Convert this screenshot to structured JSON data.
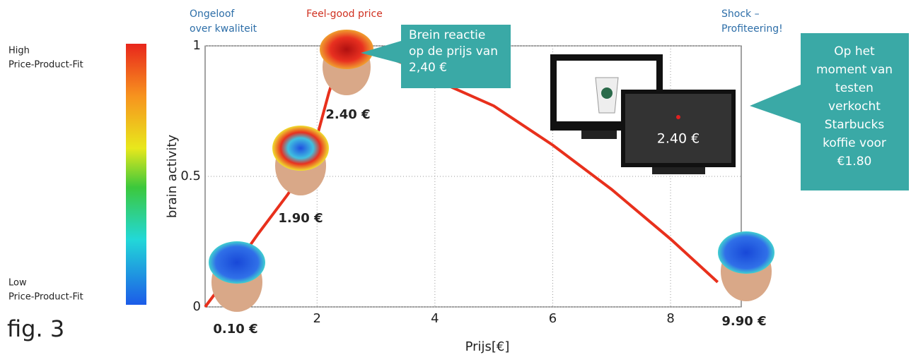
{
  "chart_data": {
    "type": "line",
    "xlabel": "Prijs[€]",
    "ylabel": "brain activity",
    "x": [
      0.1,
      0.5,
      1,
      1.5,
      1.9,
      2.2,
      2.4,
      2.8,
      3.5,
      4,
      5,
      6,
      7,
      8,
      8.8
    ],
    "values": [
      0,
      0.12,
      0.28,
      0.43,
      0.57,
      0.82,
      0.96,
      0.99,
      0.93,
      0.87,
      0.77,
      0.62,
      0.45,
      0.26,
      0.095
    ],
    "color": "#e8301c",
    "xlim": [
      0.1,
      9.2
    ],
    "ylim": [
      0,
      1
    ],
    "xticks": [
      2,
      4,
      6,
      8
    ],
    "yticks": [
      0,
      0.5,
      1
    ],
    "grid": true,
    "price_labels": [
      "0.10 €",
      "1.90 €",
      "2.40 €",
      "9.90 €"
    ],
    "top_labels": [
      [
        "Ongeloof",
        "over kwaliteit"
      ],
      [
        "Feel-good price"
      ],
      [
        "Shock –",
        "Profiteering!"
      ]
    ],
    "callouts": [
      [
        "Brein reactie",
        "op de prijs van",
        "2,40 €"
      ],
      [
        "Op het",
        "moment van",
        "testen",
        "verkocht",
        "Starbucks",
        "koffie voor",
        "€1.80"
      ]
    ],
    "screen_price": "2.40 €",
    "colorbar": {
      "high": [
        "High",
        "Price-Product-Fit"
      ],
      "low": [
        "Low",
        "Price-Product-Fit"
      ]
    },
    "figure_label": "fig. 3"
  }
}
